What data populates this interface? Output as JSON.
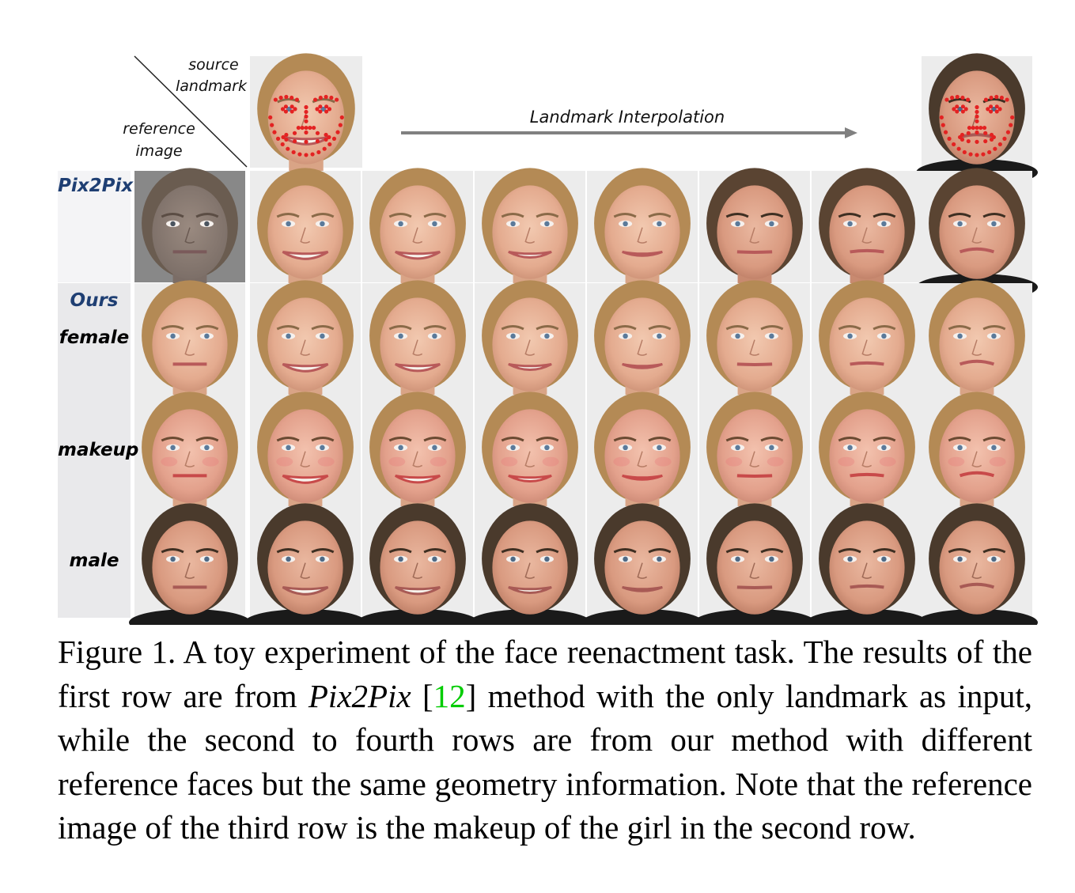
{
  "header": {
    "source_label": "source",
    "landmark_label": "landmark",
    "reference_label": "reference",
    "image_label": "image",
    "interpolation_label": "Landmark Interpolation"
  },
  "rows": [
    {
      "labels": [
        "Pix2Pix"
      ],
      "label_color": "#1f3f73"
    },
    {
      "labels": [
        "Ours",
        "female"
      ],
      "label_colors": [
        "#1f3f73",
        "#000000"
      ]
    },
    {
      "labels": [
        "makeup"
      ],
      "label_color": "#000000"
    },
    {
      "labels": [
        "male"
      ],
      "label_color": "#000000"
    }
  ],
  "caption": {
    "part1": "Figure 1. A toy experiment of the face reenactment task. The results of the first row are from ",
    "method": "Pix2Pix",
    "ref_open": " [",
    "ref_num": "12",
    "ref_close": "]",
    "part2": " method with the only landmark as input, while the second to fourth rows are from our method with different reference faces but the same geometry information. Note that the reference image of the third row is the makeup of the girl in the second row."
  },
  "colors": {
    "landmark_dots": "#e32222",
    "label_blue": "#1f3f73",
    "citation_green": "#00cc00",
    "arrow": "#808080"
  }
}
